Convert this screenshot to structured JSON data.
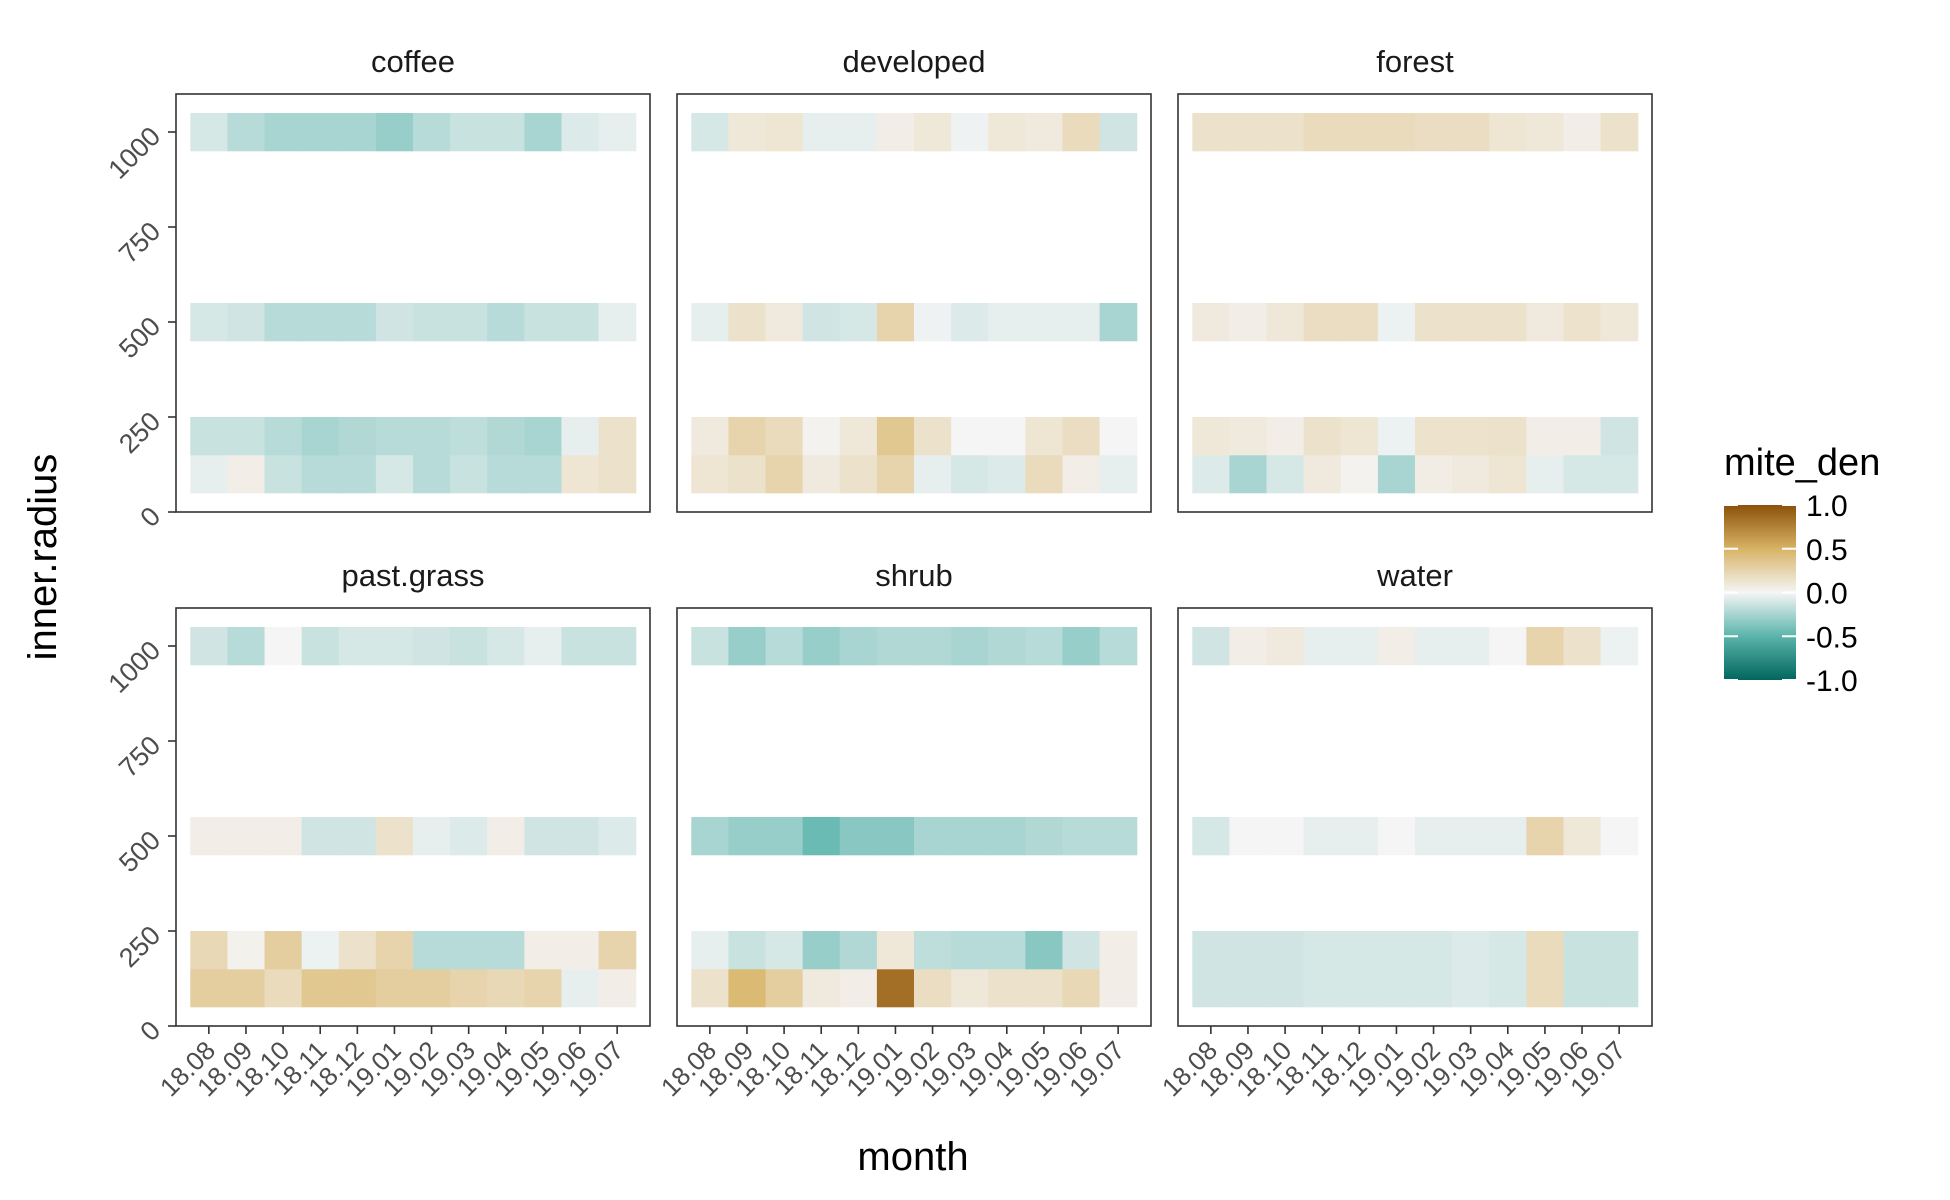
{
  "chart_data": {
    "type": "heatmap",
    "xlabel": "month",
    "ylabel": "inner.radius",
    "x_categories": [
      "18.08",
      "18.09",
      "18.10",
      "18.11",
      "18.12",
      "19.01",
      "19.02",
      "19.03",
      "19.04",
      "19.05",
      "19.06",
      "19.07"
    ],
    "y_rows": [
      {
        "lo": 50,
        "hi": 150
      },
      {
        "lo": 150,
        "hi": 250
      },
      {
        "lo": 450,
        "hi": 550
      },
      {
        "lo": 950,
        "hi": 1050
      }
    ],
    "ylim": [
      0,
      1100
    ],
    "y_ticks": [
      0,
      250,
      500,
      750,
      1000
    ],
    "legend": {
      "title": "mite_den",
      "limits": [
        -1.0,
        1.0
      ],
      "ticks": [
        1.0,
        0.5,
        0.0,
        -0.5,
        -1.0
      ],
      "tick_labels": [
        "1.0",
        "0.5",
        "0.0",
        "-0.5",
        "-1.0"
      ],
      "colors": {
        "low": "#01665e",
        "low_mid": "#5ab4ac",
        "near_zero": "#f5f5f5",
        "high_mid": "#d8b365",
        "high": "#8c510a"
      }
    },
    "panels": [
      {
        "label": "coffee",
        "values": {
          "r100": [
            -0.05,
            0.05,
            -0.15,
            -0.2,
            -0.2,
            -0.1,
            -0.2,
            -0.15,
            -0.2,
            -0.2,
            0.12,
            0.15
          ],
          "r200": [
            -0.15,
            -0.15,
            -0.2,
            -0.25,
            -0.22,
            -0.2,
            -0.2,
            -0.18,
            -0.22,
            -0.25,
            -0.05,
            0.15
          ],
          "r500": [
            -0.1,
            -0.12,
            -0.2,
            -0.2,
            -0.2,
            -0.12,
            -0.15,
            -0.15,
            -0.2,
            -0.15,
            -0.15,
            -0.05
          ],
          "r1000": [
            -0.1,
            -0.2,
            -0.25,
            -0.25,
            -0.25,
            -0.3,
            -0.2,
            -0.15,
            -0.15,
            -0.25,
            -0.08,
            -0.05
          ]
        }
      },
      {
        "label": "developed",
        "values": {
          "r100": [
            0.12,
            0.15,
            0.25,
            0.08,
            0.15,
            0.25,
            -0.05,
            -0.1,
            -0.08,
            0.2,
            0.05,
            -0.05
          ],
          "r200": [
            0.08,
            0.25,
            0.2,
            0.02,
            0.1,
            0.35,
            0.15,
            0.0,
            0.0,
            0.12,
            0.18,
            0.0
          ],
          "r500": [
            -0.05,
            0.15,
            0.08,
            -0.12,
            -0.1,
            0.25,
            -0.02,
            -0.08,
            -0.05,
            -0.05,
            -0.05,
            -0.25
          ],
          "r1000": [
            -0.1,
            0.1,
            0.12,
            -0.05,
            -0.05,
            0.05,
            0.1,
            -0.02,
            0.1,
            0.08,
            0.2,
            -0.12
          ]
        }
      },
      {
        "label": "forest",
        "values": {
          "r100": [
            -0.08,
            -0.25,
            -0.1,
            0.08,
            0.02,
            -0.25,
            0.06,
            0.08,
            0.12,
            -0.05,
            -0.1,
            -0.1
          ],
          "r200": [
            0.1,
            0.08,
            0.05,
            0.15,
            0.12,
            -0.03,
            0.14,
            0.14,
            0.15,
            0.05,
            0.05,
            -0.12
          ],
          "r500": [
            0.08,
            0.05,
            0.1,
            0.18,
            0.18,
            -0.03,
            0.15,
            0.15,
            0.15,
            0.08,
            0.14,
            0.1
          ],
          "r1000": [
            0.15,
            0.15,
            0.15,
            0.2,
            0.2,
            0.2,
            0.18,
            0.18,
            0.12,
            0.1,
            0.05,
            0.15
          ]
        }
      },
      {
        "label": "past.grass",
        "values": {
          "r100": [
            0.3,
            0.3,
            0.2,
            0.35,
            0.35,
            0.3,
            0.3,
            0.25,
            0.22,
            0.25,
            -0.05,
            0.05
          ],
          "r200": [
            0.22,
            0.03,
            0.3,
            -0.03,
            0.15,
            0.25,
            -0.2,
            -0.2,
            -0.2,
            0.05,
            0.05,
            0.25
          ],
          "r500": [
            0.05,
            0.05,
            0.05,
            -0.12,
            -0.12,
            0.15,
            -0.05,
            -0.08,
            0.05,
            -0.12,
            -0.12,
            -0.08
          ],
          "r1000": [
            -0.12,
            -0.2,
            0.0,
            -0.15,
            -0.1,
            -0.1,
            -0.12,
            -0.15,
            -0.1,
            -0.05,
            -0.15,
            -0.15
          ]
        }
      },
      {
        "label": "shrub",
        "values": {
          "r100": [
            0.15,
            0.45,
            0.3,
            0.08,
            0.05,
            0.85,
            0.18,
            0.1,
            0.15,
            0.15,
            0.22,
            0.05
          ],
          "r200": [
            -0.05,
            -0.15,
            -0.1,
            -0.3,
            -0.22,
            0.1,
            -0.18,
            -0.2,
            -0.2,
            -0.35,
            -0.12,
            0.05
          ],
          "r500": [
            -0.25,
            -0.3,
            -0.3,
            -0.45,
            -0.35,
            -0.35,
            -0.25,
            -0.25,
            -0.25,
            -0.22,
            -0.2,
            -0.2
          ],
          "r1000": [
            -0.15,
            -0.3,
            -0.2,
            -0.3,
            -0.25,
            -0.22,
            -0.22,
            -0.25,
            -0.22,
            -0.2,
            -0.3,
            -0.2
          ]
        }
      },
      {
        "label": "water",
        "values": {
          "r100": [
            -0.12,
            -0.12,
            -0.12,
            -0.1,
            -0.1,
            -0.1,
            -0.1,
            -0.08,
            -0.1,
            0.2,
            -0.15,
            -0.15
          ],
          "r200": [
            -0.12,
            -0.12,
            -0.12,
            -0.1,
            -0.1,
            -0.1,
            -0.1,
            -0.08,
            -0.1,
            0.2,
            -0.15,
            -0.15
          ],
          "r500": [
            -0.1,
            0.0,
            0.0,
            -0.05,
            -0.05,
            0.0,
            -0.05,
            -0.05,
            -0.05,
            0.25,
            0.1,
            0.0
          ],
          "r1000": [
            -0.12,
            0.05,
            0.08,
            -0.05,
            -0.05,
            0.05,
            -0.05,
            -0.05,
            0.0,
            0.25,
            0.15,
            -0.03
          ]
        }
      }
    ]
  }
}
